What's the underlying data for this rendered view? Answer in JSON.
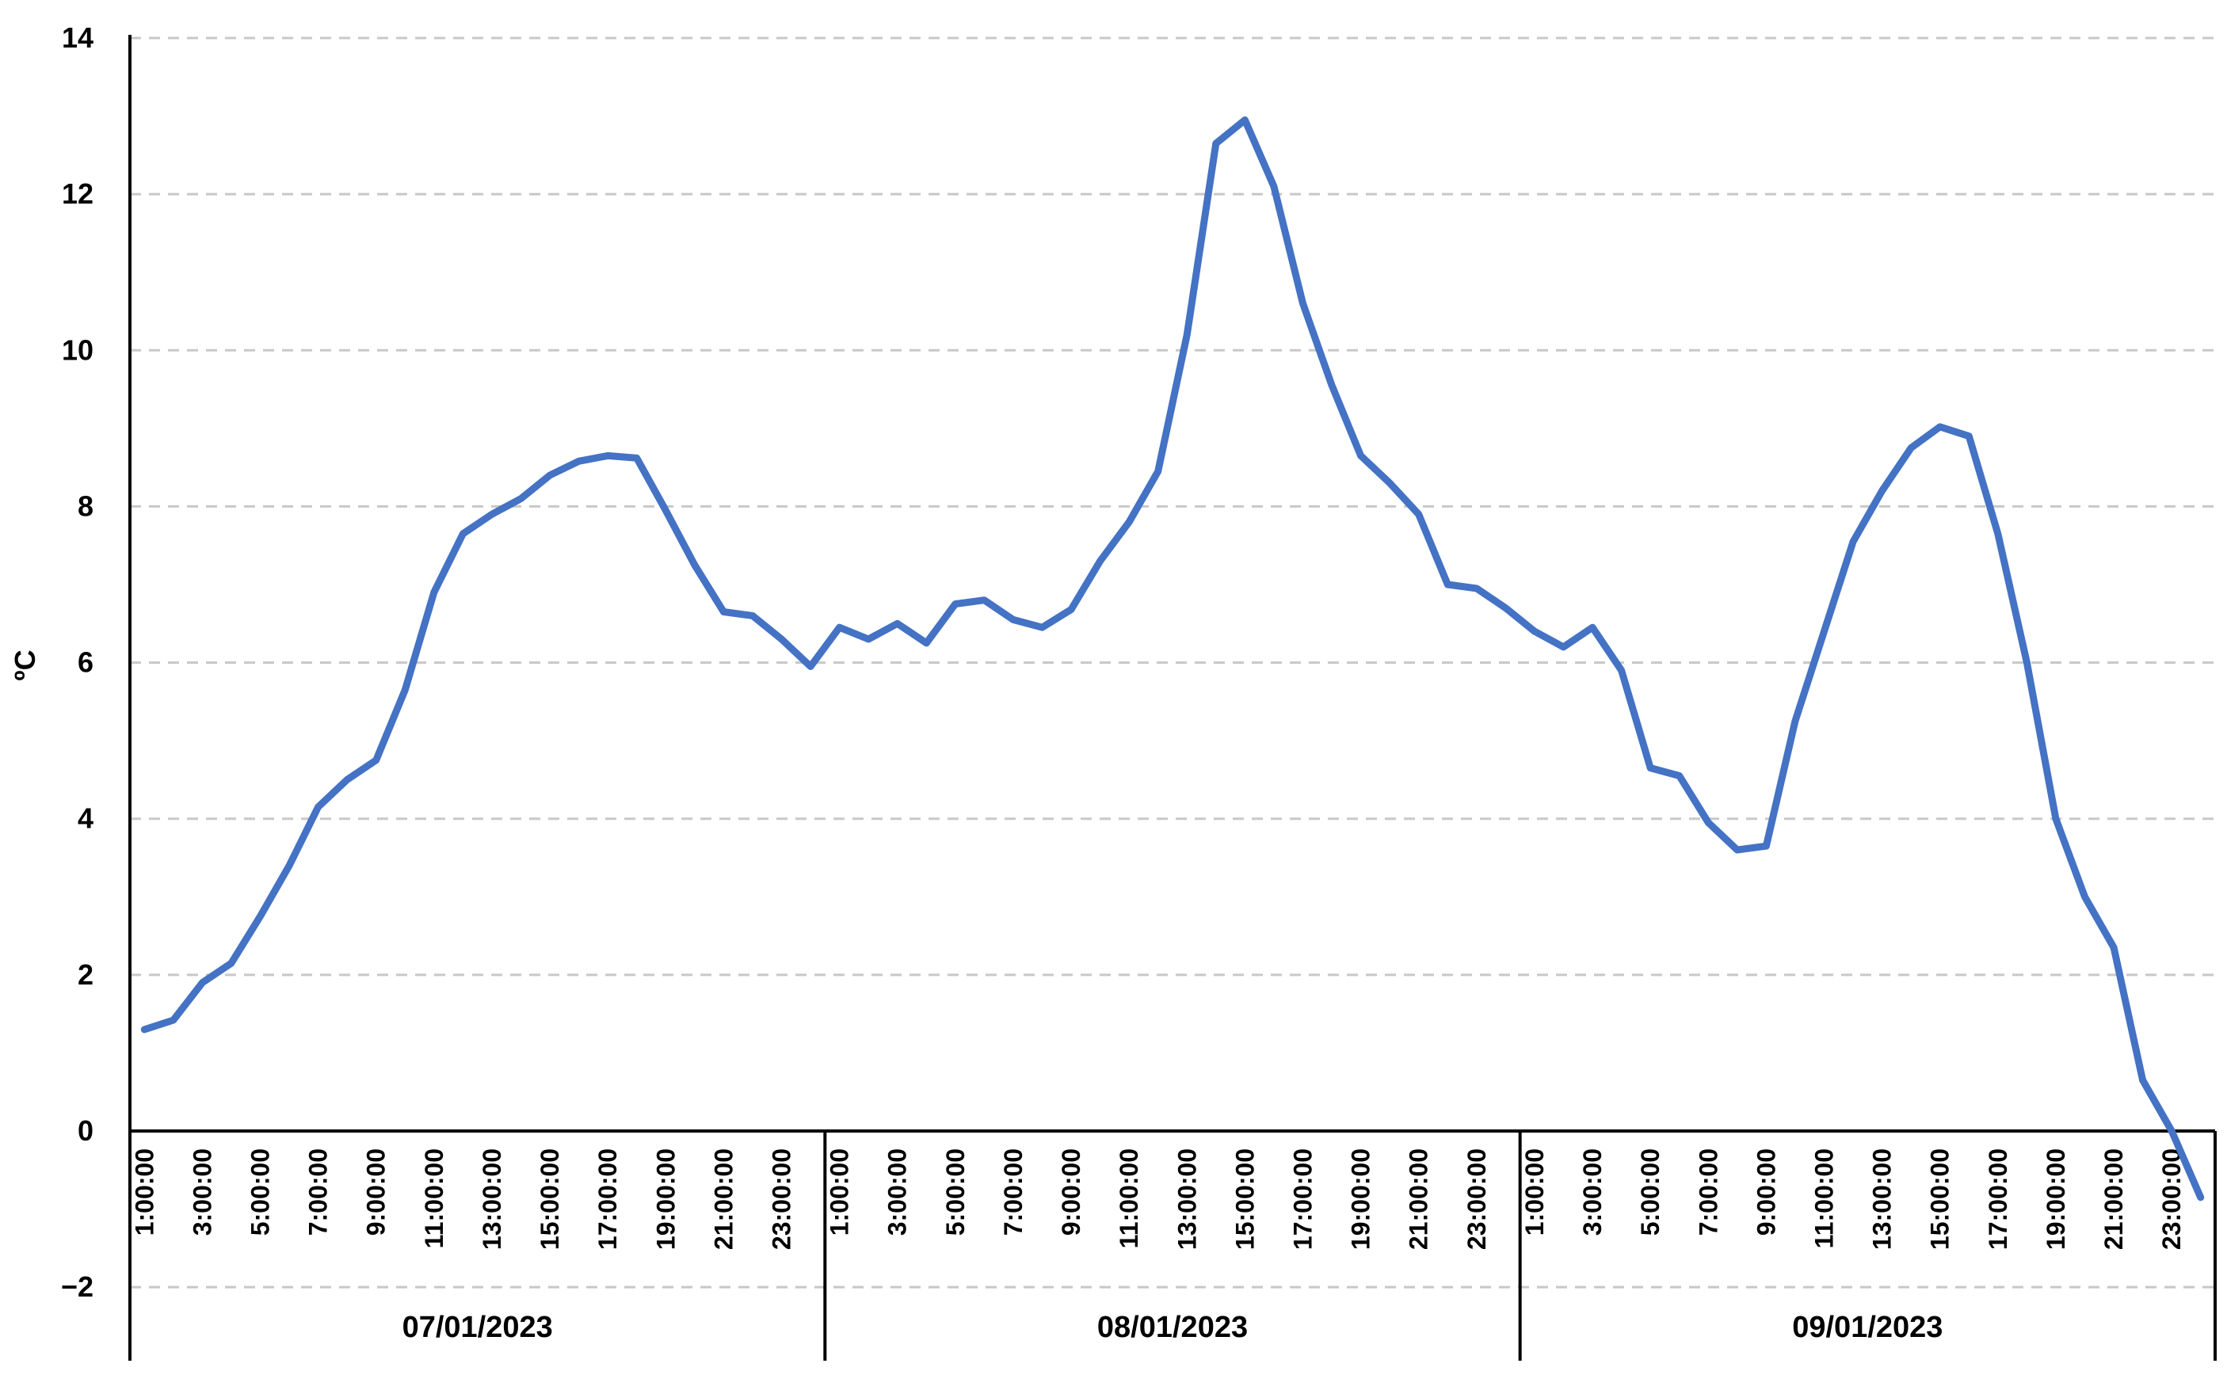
{
  "chart_data": {
    "type": "line",
    "title": "",
    "xlabel": "",
    "ylabel": "ºC",
    "ylim": [
      -2,
      14
    ],
    "yticks": [
      -2,
      0,
      2,
      4,
      6,
      8,
      10,
      12,
      14
    ],
    "ytick_labels": [
      "−2",
      "0",
      "2",
      "4",
      "6",
      "8",
      "10",
      "12",
      "14"
    ],
    "grid": "horizontal dashed",
    "legend": "none",
    "line_color": "#4472C4",
    "x_tick_labels": [
      "1:00:00",
      "3:00:00",
      "5:00:00",
      "7:00:00",
      "9:00:00",
      "11:00:00",
      "13:00:00",
      "15:00:00",
      "17:00:00",
      "19:00:00",
      "21:00:00",
      "23:00:00"
    ],
    "groups": [
      {
        "label": "07/01/2023",
        "values": [
          1.3,
          1.42,
          1.9,
          2.15,
          2.75,
          3.4,
          4.15,
          4.5,
          4.75,
          5.65,
          6.9,
          7.65,
          7.9,
          8.1,
          8.4,
          8.58,
          8.65,
          8.62,
          7.95,
          7.25,
          6.65,
          6.6,
          6.3,
          5.95
        ]
      },
      {
        "label": "08/01/2023",
        "values": [
          6.45,
          6.3,
          6.5,
          6.25,
          6.75,
          6.8,
          6.55,
          6.45,
          6.68,
          7.3,
          7.8,
          8.45,
          10.2,
          12.65,
          12.95,
          12.1,
          10.6,
          9.55,
          8.65,
          8.3,
          7.9,
          7.0,
          6.95,
          6.7
        ]
      },
      {
        "label": "09/01/2023",
        "values": [
          6.4,
          6.2,
          6.45,
          5.9,
          4.65,
          4.55,
          3.95,
          3.6,
          3.65,
          5.25,
          6.4,
          7.55,
          8.2,
          8.75,
          9.02,
          8.9,
          7.65,
          6.0,
          4.0,
          3.0,
          2.35,
          0.65,
          0.0,
          -0.85
        ]
      }
    ]
  }
}
